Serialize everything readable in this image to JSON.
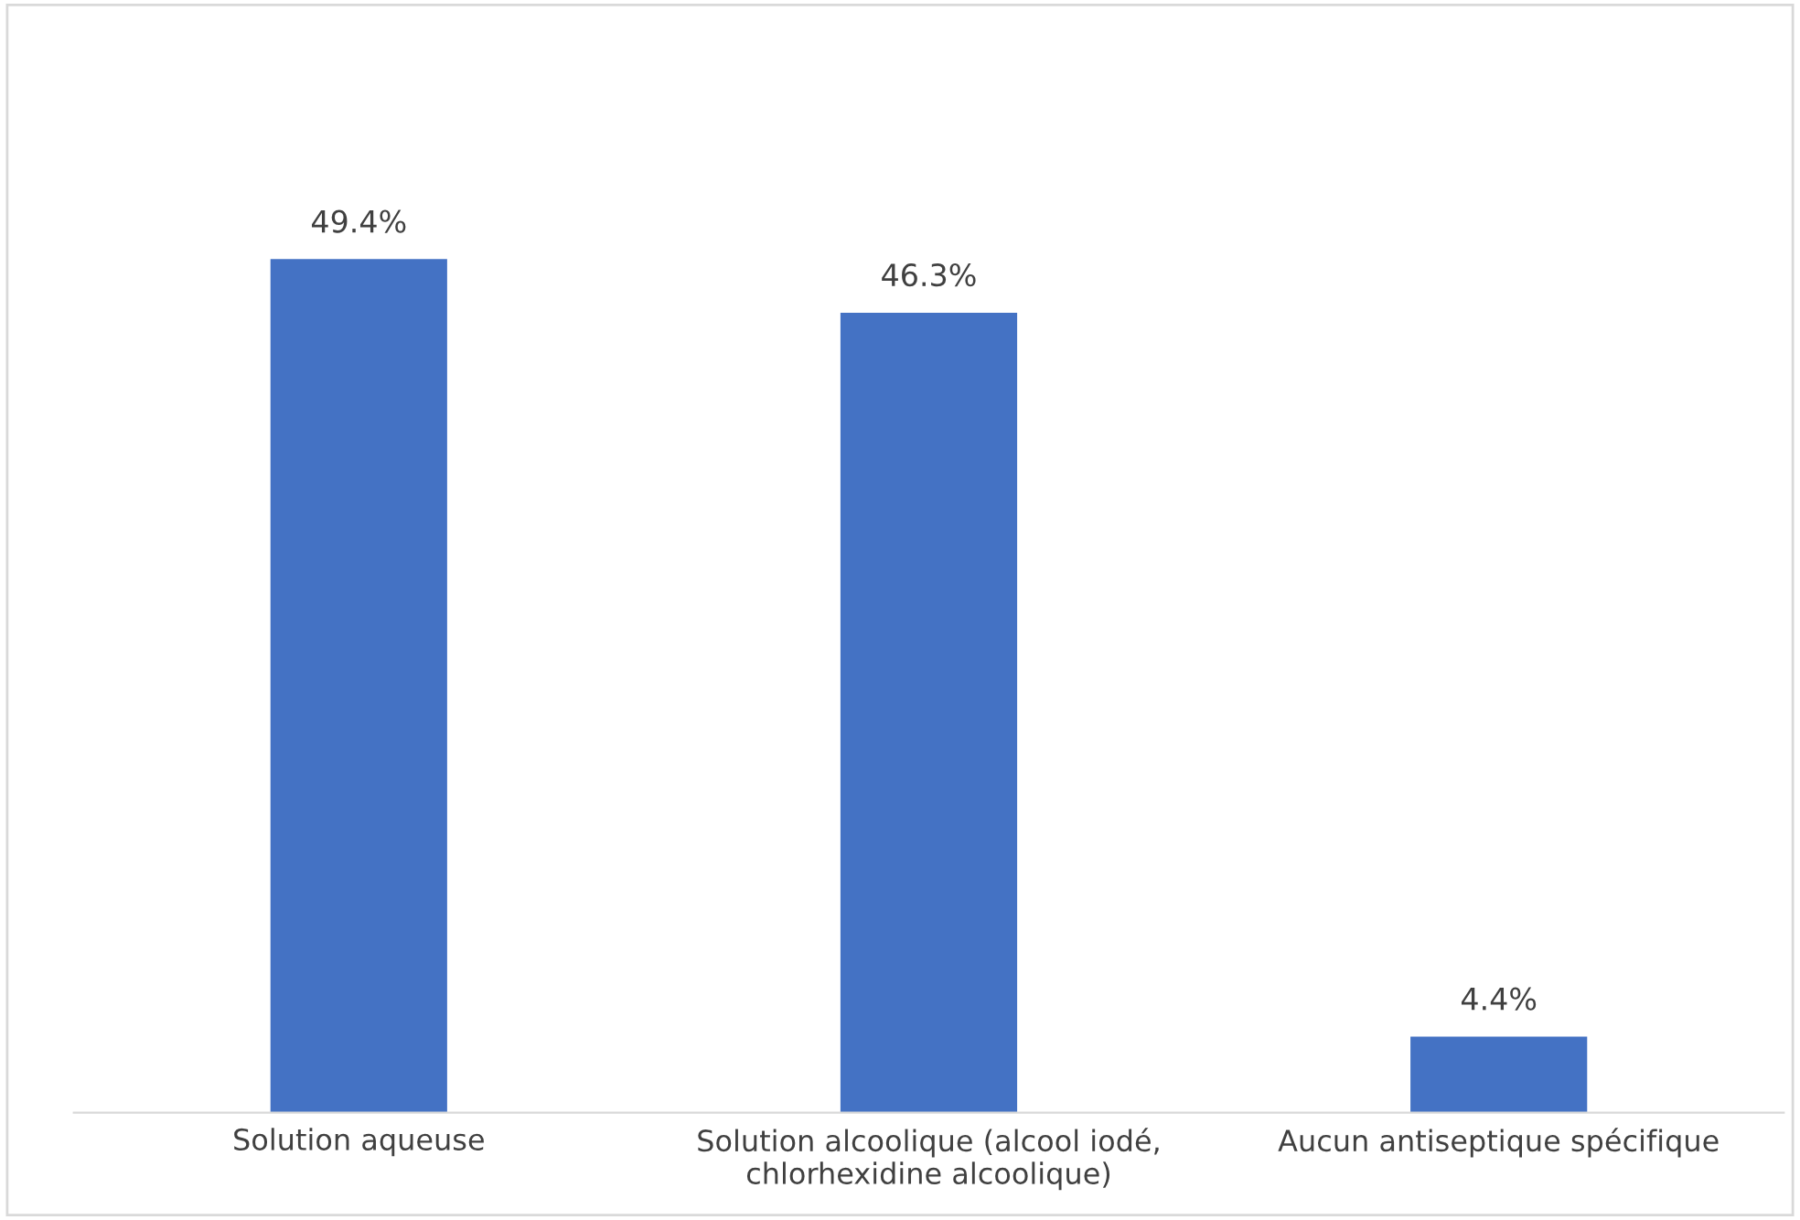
{
  "chart_data": {
    "type": "bar",
    "categories": [
      "Solution aqueuse",
      "Solution alcoolique (alcool iodé, chlorhexidine alcoolique)",
      "Aucun antiseptique spécifique"
    ],
    "values": [
      49.4,
      46.3,
      4.4
    ],
    "value_labels": [
      "49.4%",
      "46.3%",
      "4.4%"
    ],
    "color": "#4472c4",
    "grid": false,
    "legend": false
  }
}
